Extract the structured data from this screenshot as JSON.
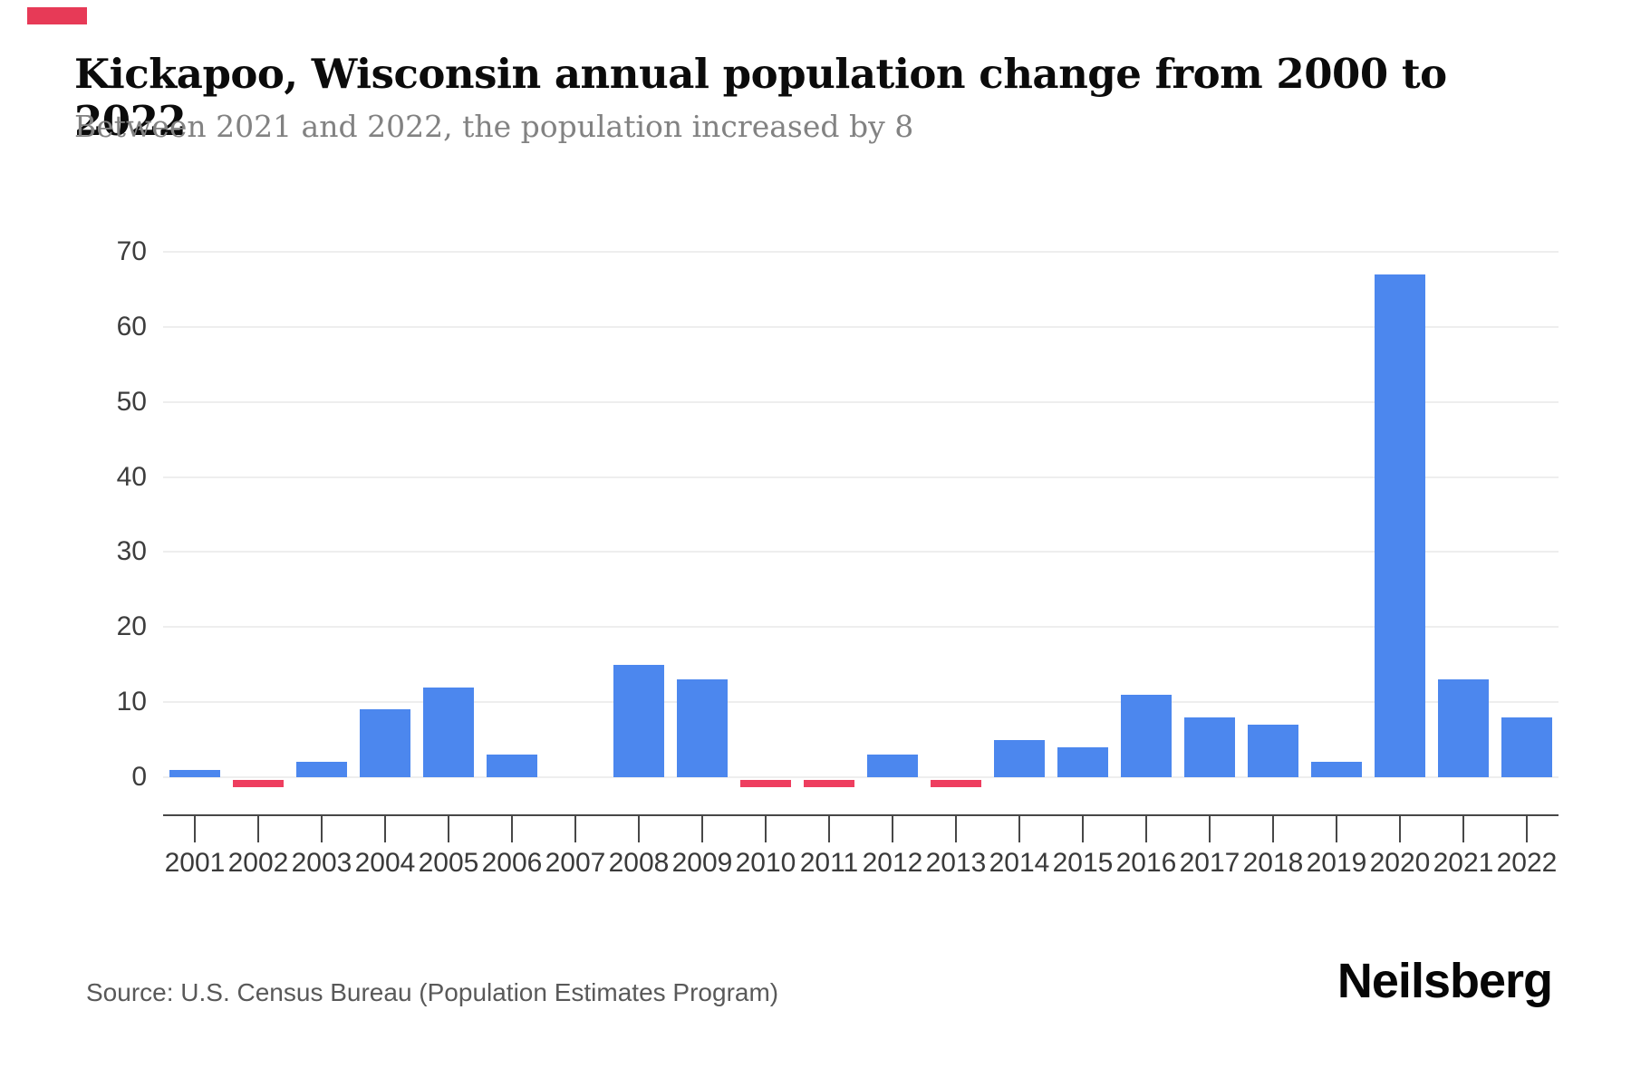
{
  "brand": {
    "accent_color": "#e73a57",
    "logo_text": "Neilsberg"
  },
  "header": {
    "title": "Kickapoo, Wisconsin annual population change from 2000 to 2022",
    "subtitle": "Between 2021 and 2022, the population increased by 8"
  },
  "footer": {
    "source_text": "Source: U.S. Census Bureau (Population Estimates Program)"
  },
  "chart_data": {
    "type": "bar",
    "title": "Kickapoo, Wisconsin annual population change from 2000 to 2022",
    "categories": [
      "2001",
      "2002",
      "2003",
      "2004",
      "2005",
      "2006",
      "2007",
      "2008",
      "2009",
      "2010",
      "2011",
      "2012",
      "2013",
      "2014",
      "2015",
      "2016",
      "2017",
      "2018",
      "2019",
      "2020",
      "2021",
      "2022"
    ],
    "values": [
      1,
      -1,
      2,
      9,
      12,
      3,
      0,
      15,
      13,
      -1,
      -1,
      3,
      -1,
      5,
      4,
      11,
      8,
      7,
      2,
      67,
      13,
      8
    ],
    "xlabel": "",
    "ylabel": "",
    "yticks": [
      0,
      10,
      20,
      30,
      40,
      50,
      60,
      70
    ],
    "ylim": [
      -5,
      72
    ],
    "grid": true,
    "legend": false,
    "positive_bar_color": "#4c87ee",
    "negative_bar_color": "#ee3e5f"
  }
}
